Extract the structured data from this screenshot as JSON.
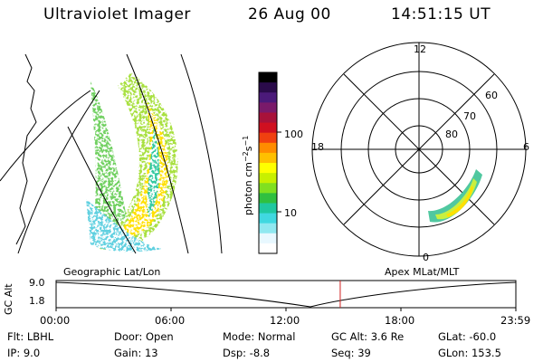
{
  "header": {
    "instrument": "Ultraviolet Imager",
    "date": "26 Aug 00",
    "time": "14:51:15 UT"
  },
  "colorbar": {
    "label": "photon cm^-2 s^-1",
    "ticks": [
      "100",
      "10"
    ],
    "colors": [
      "#000000",
      "#2a0b4a",
      "#4b1a7a",
      "#7a1a6a",
      "#a8123a",
      "#d01020",
      "#f04010",
      "#ff8c00",
      "#ffc000",
      "#ffff00",
      "#c8f000",
      "#80e020",
      "#30c040",
      "#20c8a0",
      "#40d8e0",
      "#90e8f0",
      "#e8f8ff",
      "#ffffff"
    ]
  },
  "geo": {
    "caption": "Geographic Lat/Lon"
  },
  "polar": {
    "caption": "Apex MLat/MLT",
    "mlt_labels": [
      "12",
      "18",
      "6",
      "0"
    ],
    "lat_labels": [
      "60",
      "70",
      "80"
    ]
  },
  "timeline": {
    "ylabel": "GC Alt",
    "yticks": [
      "9.0",
      "1.8"
    ],
    "xticks": [
      "00:00",
      "06:00",
      "12:00",
      "18:00",
      "23:59"
    ],
    "marker_fraction": 0.618
  },
  "footer": {
    "filter": "Flt: LBHL",
    "ip": "IP:  9.0",
    "door": "Door: Open",
    "gain": "Gain: 13",
    "mode": "Mode:  Normal",
    "dsp": "Dsp:    -8.8",
    "gcalt": "GC Alt: 3.6 Re",
    "seq": "Seq: 39",
    "glat": "GLat: -60.0",
    "glon": "GLon: 153.5"
  }
}
